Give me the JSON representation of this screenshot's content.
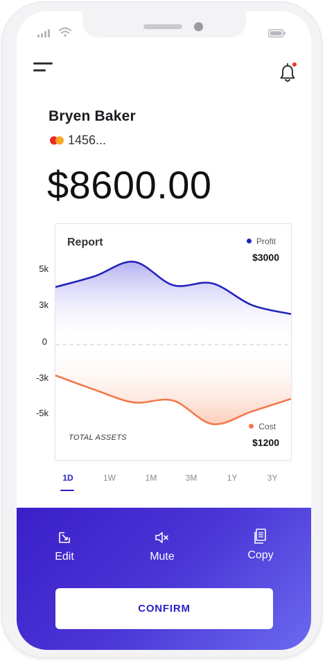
{
  "user": {
    "name": "Bryen Baker",
    "card_number": "1456..."
  },
  "balance": "$8600.00",
  "report": {
    "title": "Report",
    "profit_label": "Profit",
    "profit_value": "$3000",
    "cost_label": "Cost",
    "cost_value": "$1200",
    "total_assets_label": "TOTAL ASSETS"
  },
  "chart_data": {
    "type": "area",
    "y_ticks": [
      "5k",
      "3k",
      "0",
      "-3k",
      "-5k"
    ],
    "ylim": [
      -5,
      5
    ],
    "series": [
      {
        "name": "Profit",
        "color": "#2222bb",
        "values": [
          3.2,
          3.8,
          4.6,
          3.3,
          3.4,
          2.2,
          1.7
        ]
      },
      {
        "name": "Cost",
        "color": "#f2784b",
        "values": [
          -1.7,
          -2.5,
          -3.2,
          -3.1,
          -4.4,
          -3.7,
          -3.0
        ]
      }
    ]
  },
  "timeframes": [
    "1D",
    "1W",
    "1M",
    "3M",
    "1Y",
    "3Y"
  ],
  "active_timeframe": "1D",
  "actions": {
    "edit": "Edit",
    "mute": "Mute",
    "copy": "Copy"
  },
  "confirm_label": "CONFIRM",
  "colors": {
    "accent": "#2b1fc4",
    "profit": "#2222bb",
    "cost": "#f2784b"
  },
  "icons": {
    "menu": "menu-icon",
    "bell": "bell-icon",
    "card": "mastercard-icon",
    "edit": "edit-icon",
    "mute": "mute-icon",
    "copy": "copy-icon"
  }
}
